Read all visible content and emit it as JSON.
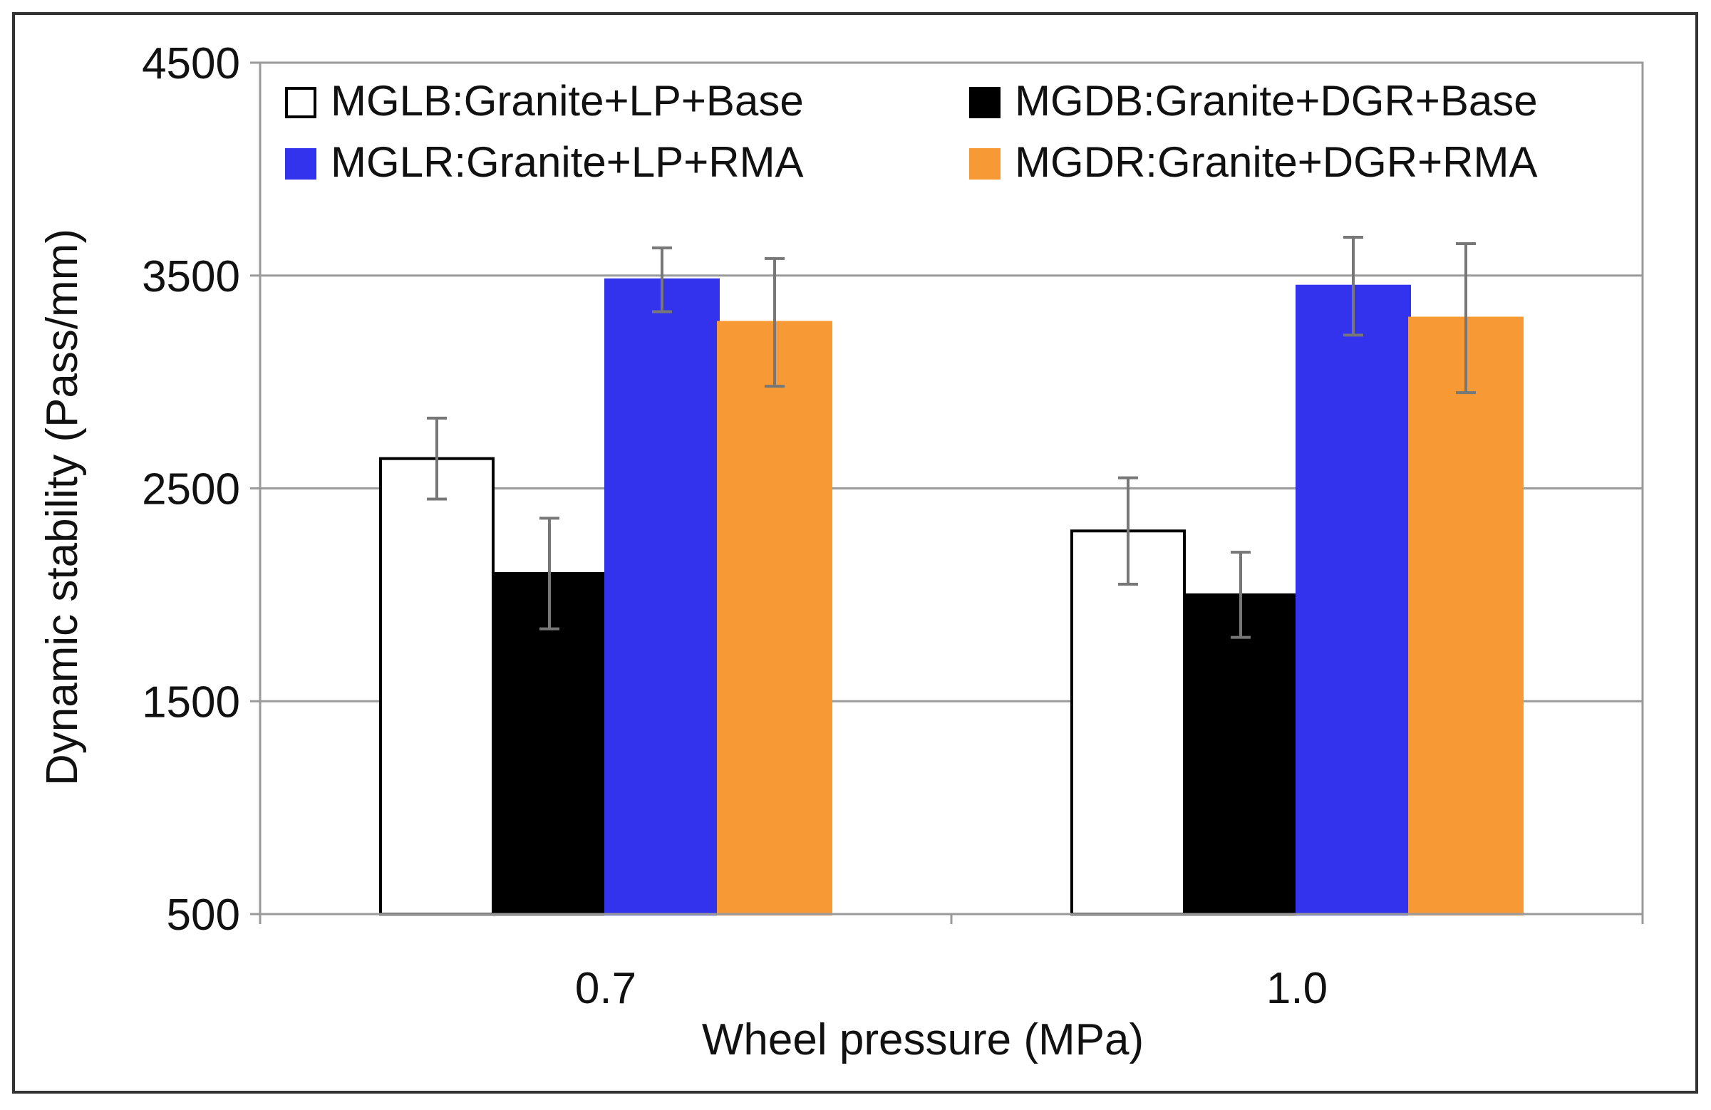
{
  "chart_data": {
    "type": "bar",
    "title": "",
    "xlabel": "Wheel pressure (MPa)",
    "ylabel": "Dynamic stability (Pass/mm)",
    "ylim": [
      500,
      4500
    ],
    "yticks": [
      500,
      1500,
      2500,
      3500,
      4500
    ],
    "ytick_labels": [
      "500",
      "1500",
      "2500",
      "3500",
      "4500"
    ],
    "categories": [
      "0.7",
      "1.0"
    ],
    "grid": true,
    "legend_position": "top",
    "series": [
      {
        "name": "MGLB:Granite+LP+Base",
        "color": "#ffffff",
        "values": [
          2640,
          2300
        ],
        "errors": [
          190,
          250
        ]
      },
      {
        "name": "MGDB:Granite+DGR+Base",
        "color": "#000000",
        "values": [
          2100,
          2000
        ],
        "errors": [
          260,
          200
        ]
      },
      {
        "name": "MGLR:Granite+LP+RMA",
        "color": "#3333ee",
        "values": [
          3480,
          3450
        ],
        "errors": [
          150,
          230
        ]
      },
      {
        "name": "MGDR:Granite+DGR+RMA",
        "color": "#f79a35",
        "values": [
          3280,
          3300
        ],
        "errors": [
          300,
          350
        ]
      }
    ]
  }
}
